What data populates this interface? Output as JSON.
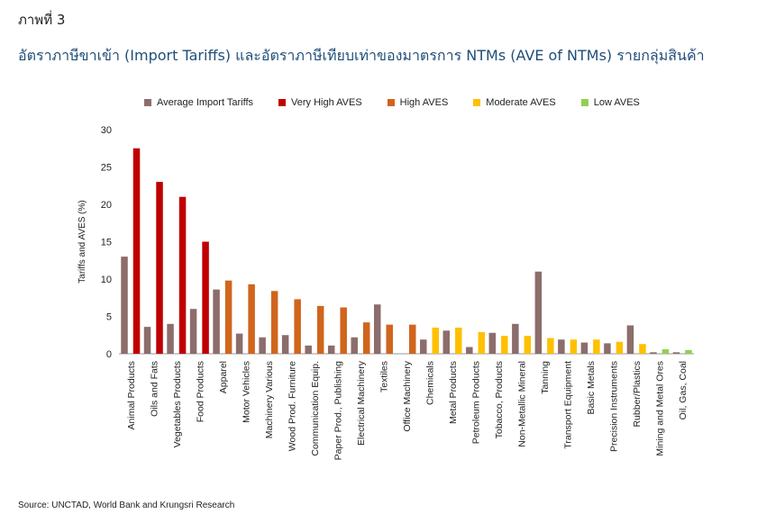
{
  "figure_label": "ภาพที่ 3",
  "title": "อัตราภาษีขาเข้า (Import Tariffs) และอัตราภาษีเทียบเท่าของมาตรการ NTMs (AVE of NTMs) รายกลุ่มสินค้า",
  "source": "Source: UNCTAD, World Bank and Krungsri Research",
  "chart_data": {
    "type": "bar",
    "ylabel": "Tariffs and AVES (%)",
    "ylim": [
      0,
      30
    ],
    "yticks": [
      0,
      5,
      10,
      15,
      20,
      25,
      30
    ],
    "legend_position": "top",
    "legend": [
      {
        "key": "tariff",
        "name": "Average Import Tariffs",
        "color": "#8c6d6b"
      },
      {
        "key": "very_high",
        "name": "Very High AVES",
        "color": "#c00000"
      },
      {
        "key": "high",
        "name": "High AVES",
        "color": "#d0651c"
      },
      {
        "key": "moderate",
        "name": "Moderate AVES",
        "color": "#ffc000"
      },
      {
        "key": "low",
        "name": "Low AVES",
        "color": "#92d050"
      }
    ],
    "categories": [
      {
        "label": "Animal Products",
        "tariff": 13,
        "aves": 27.5,
        "group": "very_high"
      },
      {
        "label": "Oils and Fats",
        "tariff": 3.6,
        "aves": 23,
        "group": "very_high"
      },
      {
        "label": "Vegetables Products",
        "tariff": 4,
        "aves": 21,
        "group": "very_high"
      },
      {
        "label": "Food Products",
        "tariff": 6,
        "aves": 15,
        "group": "very_high"
      },
      {
        "label": "Apparel",
        "tariff": 8.6,
        "aves": 9.8,
        "group": "high"
      },
      {
        "label": "Motor Vehicles",
        "tariff": 2.7,
        "aves": 9.3,
        "group": "high"
      },
      {
        "label": "Machinery Various",
        "tariff": 2.2,
        "aves": 8.4,
        "group": "high"
      },
      {
        "label": "Wood Prod. Furniture",
        "tariff": 2.5,
        "aves": 7.3,
        "group": "high"
      },
      {
        "label": "Communication Equip.",
        "tariff": 1.1,
        "aves": 6.4,
        "group": "high"
      },
      {
        "label": "Paper Prod., Publishing",
        "tariff": 1.1,
        "aves": 6.2,
        "group": "high"
      },
      {
        "label": "Electrical Machinery",
        "tariff": 2.2,
        "aves": 4.2,
        "group": "high"
      },
      {
        "label": "Textiles",
        "tariff": 6.6,
        "aves": 3.9,
        "group": "high"
      },
      {
        "label": "Office Machinery",
        "tariff": 0,
        "aves": 3.9,
        "group": "high"
      },
      {
        "label": "Chemicals",
        "tariff": 1.9,
        "aves": 3.5,
        "group": "moderate"
      },
      {
        "label": "Metal Products",
        "tariff": 3.1,
        "aves": 3.5,
        "group": "moderate"
      },
      {
        "label": "Petroleum Products",
        "tariff": 0.9,
        "aves": 2.9,
        "group": "moderate"
      },
      {
        "label": "Tobacco, Products",
        "tariff": 2.8,
        "aves": 2.4,
        "group": "moderate"
      },
      {
        "label": "Non-Metallic Mineral",
        "tariff": 4,
        "aves": 2.4,
        "group": "moderate"
      },
      {
        "label": "Tanning",
        "tariff": 11,
        "aves": 2.1,
        "group": "moderate"
      },
      {
        "label": "Transport Equipment",
        "tariff": 1.9,
        "aves": 1.9,
        "group": "moderate"
      },
      {
        "label": "Basic Metals",
        "tariff": 1.5,
        "aves": 1.9,
        "group": "moderate"
      },
      {
        "label": "Precision Instruments",
        "tariff": 1.4,
        "aves": 1.6,
        "group": "moderate"
      },
      {
        "label": "Rubber/Plastics",
        "tariff": 3.8,
        "aves": 1.3,
        "group": "moderate"
      },
      {
        "label": "Mining and Metal Ores",
        "tariff": 0.2,
        "aves": 0.6,
        "group": "low"
      },
      {
        "label": "Oil, Gas, Coal",
        "tariff": 0.2,
        "aves": 0.5,
        "group": "low"
      }
    ]
  }
}
